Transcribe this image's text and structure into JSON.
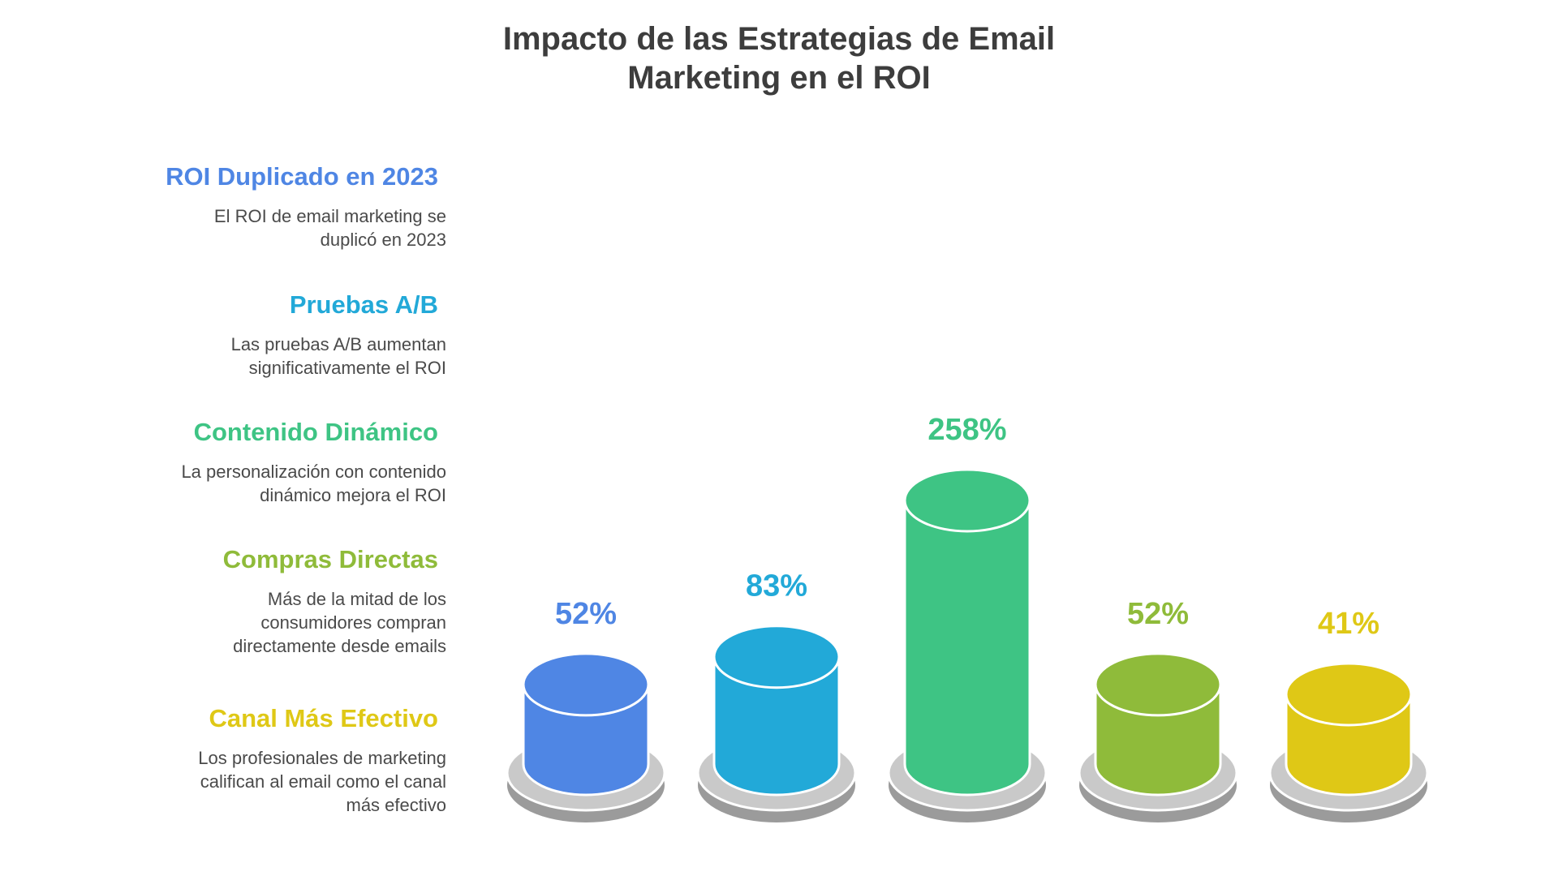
{
  "title_lines": [
    "Impacto de las Estrategias de Email",
    "Marketing en el ROI"
  ],
  "chart_data": {
    "type": "bar",
    "style": "3d-cylinder",
    "title": "Impacto de las Estrategias de Email Marketing en el ROI",
    "legend_position": "left",
    "grid": false,
    "ylim": [
      0,
      258
    ],
    "categories": [
      "ROI Duplicado en 2023",
      "Pruebas A/B",
      "Contenido Dinámico",
      "Compras Directas",
      "Canal Más Efectivo"
    ],
    "values": [
      52,
      83,
      258,
      52,
      41
    ],
    "labels": [
      "52%",
      "83%",
      "258%",
      "52%",
      "41%"
    ],
    "colors": [
      "#4f86e4",
      "#22a9d8",
      "#3ec484",
      "#8fbb3a",
      "#dfc816"
    ],
    "descriptions": [
      "El ROI de email marketing se\nduplicó en 2023",
      "Las pruebas A/B aumentan\nsignificativamente el ROI",
      "La personalización con contenido\ndinámico mejora el ROI",
      "Más de la mitad de los\nconsumidores compran\ndirectamente desde emails",
      "Los profesionales de marketing\ncalifican al email como el canal\nmás efectivo"
    ]
  }
}
